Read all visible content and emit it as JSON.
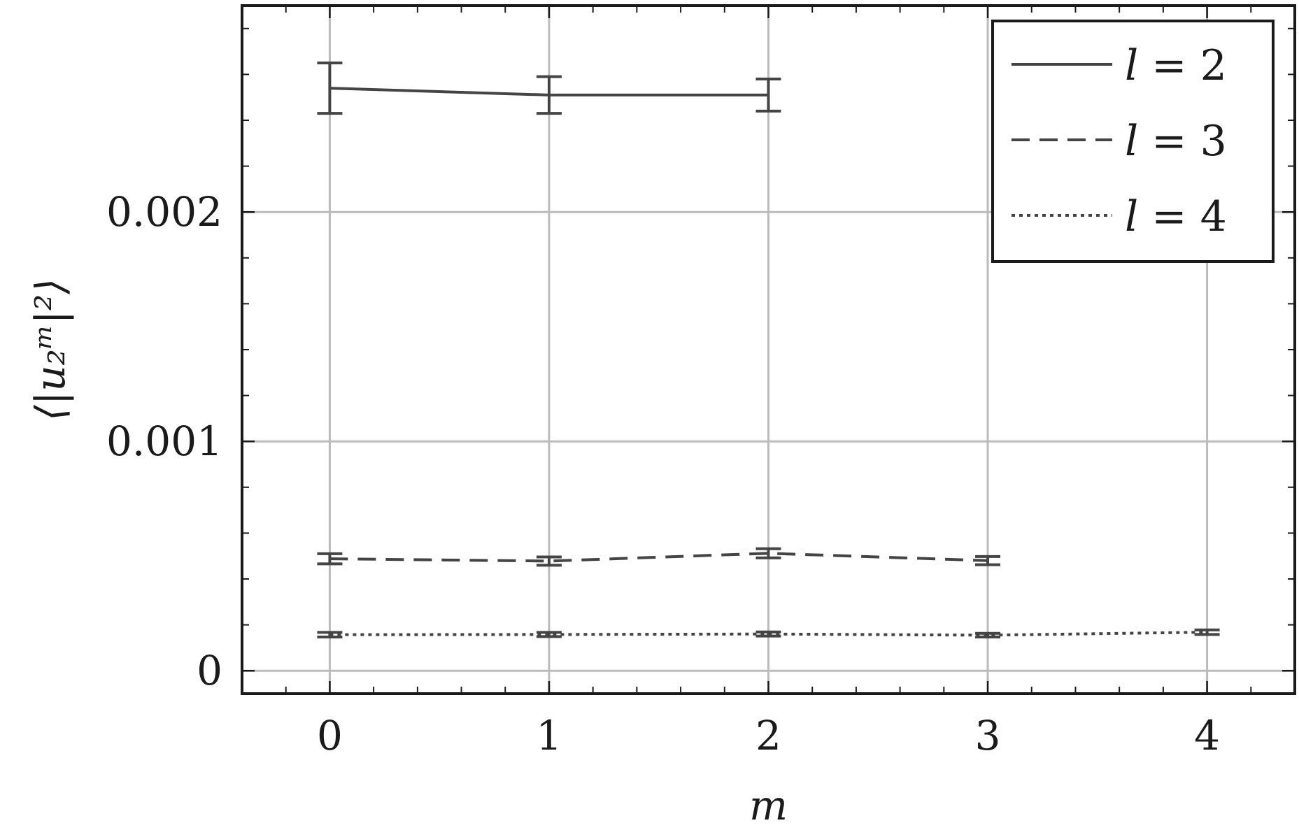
{
  "chart_data": {
    "type": "line",
    "title": "",
    "xlabel": "m",
    "ylabel": "⟨|u₂ᵐ|²⟩",
    "xlim": [
      -0.4,
      4.4
    ],
    "ylim": [
      -0.0001,
      0.0029
    ],
    "x_ticks": [
      0,
      1,
      2,
      3,
      4
    ],
    "x_tick_labels": [
      "0",
      "1",
      "2",
      "3",
      "4"
    ],
    "y_ticks": [
      0,
      0.001,
      0.002
    ],
    "y_tick_labels": [
      "0",
      "0.001",
      "0.002"
    ],
    "grid": true,
    "legend_position": "top-right",
    "series": [
      {
        "name": "l = 2",
        "style": "solid",
        "x": [
          0,
          1,
          2
        ],
        "y": [
          0.00254,
          0.00251,
          0.00251
        ],
        "err": [
          0.00011,
          8e-05,
          7e-05
        ]
      },
      {
        "name": "l = 3",
        "style": "dashed",
        "x": [
          0,
          1,
          2,
          3
        ],
        "y": [
          0.000488,
          0.000478,
          0.000512,
          0.00048
        ],
        "err": [
          2.2e-05,
          1.8e-05,
          2e-05,
          1.8e-05
        ]
      },
      {
        "name": "l = 4",
        "style": "dotted",
        "x": [
          0,
          1,
          2,
          3,
          4
        ],
        "y": [
          0.000157,
          0.000158,
          0.00016,
          0.000155,
          0.000168
        ],
        "err": [
          1e-05,
          9e-06,
          9e-06,
          8e-06,
          1e-05
        ]
      }
    ],
    "colors": {
      "line": "#444444",
      "grid": "#bbbbbb",
      "frame": "#1a1a1a"
    }
  },
  "legend": {
    "items": [
      {
        "var": "l",
        "rest": " = 2"
      },
      {
        "var": "l",
        "rest": " = 3"
      },
      {
        "var": "l",
        "rest": " = 4"
      }
    ]
  }
}
